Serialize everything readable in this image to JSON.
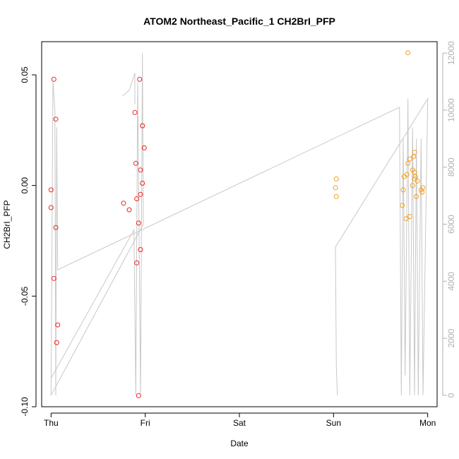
{
  "chart_data": {
    "type": "scatter",
    "title": "ATOM2 Northeast_Pacific_1 CH2BrI_PFP",
    "xlabel": "Date",
    "ylabel": "CH2BrI_PFP",
    "x_ticks": [
      "Thu",
      "Fri",
      "Sat",
      "Sun",
      "Mon"
    ],
    "y_ticks": [
      "-0.10",
      "-0.05",
      "0.00",
      "0.05"
    ],
    "y2_ticks": [
      "0",
      "2000",
      "4000",
      "6000",
      "8000",
      "10000",
      "12000"
    ],
    "xlim": [
      -0.1,
      4.1
    ],
    "ylim": [
      -0.1,
      0.065
    ],
    "y2lim": [
      -400,
      12400
    ],
    "grid": false,
    "colors": {
      "red_series": "#ee2222",
      "orange_series": "#f0a020",
      "altitude": "#c8c8c8",
      "axis": "#000000",
      "right_axis": "#b0b0b0"
    },
    "series": [
      {
        "marker": "circle-open",
        "color": "#ee2222",
        "points": [
          {
            "x": 0.0,
            "y": -0.002
          },
          {
            "x": 0.0,
            "y": -0.01
          },
          {
            "x": 0.03,
            "y": 0.048
          },
          {
            "x": 0.05,
            "y": 0.03
          },
          {
            "x": 0.05,
            "y": -0.019
          },
          {
            "x": 0.03,
            "y": -0.042
          },
          {
            "x": 0.07,
            "y": -0.063
          },
          {
            "x": 0.06,
            "y": -0.071
          },
          {
            "x": 0.77,
            "y": -0.008
          },
          {
            "x": 0.83,
            "y": -0.011
          },
          {
            "x": 0.89,
            "y": 0.033
          },
          {
            "x": 0.94,
            "y": 0.048
          },
          {
            "x": 0.9,
            "y": 0.01
          },
          {
            "x": 0.97,
            "y": 0.027
          },
          {
            "x": 0.99,
            "y": 0.017
          },
          {
            "x": 0.95,
            "y": 0.007
          },
          {
            "x": 0.97,
            "y": 0.001
          },
          {
            "x": 0.95,
            "y": -0.004
          },
          {
            "x": 0.91,
            "y": -0.006
          },
          {
            "x": 0.93,
            "y": -0.017
          },
          {
            "x": 0.95,
            "y": -0.029
          },
          {
            "x": 0.91,
            "y": -0.035
          },
          {
            "x": 0.93,
            "y": -0.095
          }
        ]
      },
      {
        "marker": "circle-open",
        "color": "#f0a020",
        "points": [
          {
            "x": 3.03,
            "y": 0.003
          },
          {
            "x": 3.02,
            "y": -0.001
          },
          {
            "x": 3.03,
            "y": -0.005
          },
          {
            "x": 3.79,
            "y": 0.06
          },
          {
            "x": 3.86,
            "y": 0.015
          },
          {
            "x": 3.85,
            "y": 0.013
          },
          {
            "x": 3.81,
            "y": 0.012
          },
          {
            "x": 3.79,
            "y": 0.01
          },
          {
            "x": 3.84,
            "y": 0.007
          },
          {
            "x": 3.86,
            "y": 0.006
          },
          {
            "x": 3.78,
            "y": 0.005
          },
          {
            "x": 3.75,
            "y": 0.004
          },
          {
            "x": 3.87,
            "y": 0.004
          },
          {
            "x": 3.86,
            "y": 0.003
          },
          {
            "x": 3.84,
            "y": 0.0
          },
          {
            "x": 3.89,
            "y": 0.002
          },
          {
            "x": 3.93,
            "y": -0.002
          },
          {
            "x": 3.74,
            "y": -0.002
          },
          {
            "x": 3.88,
            "y": -0.005
          },
          {
            "x": 3.73,
            "y": -0.009
          },
          {
            "x": 3.81,
            "y": -0.014
          },
          {
            "x": 3.77,
            "y": -0.015
          },
          {
            "x": 3.94,
            "y": -0.003
          },
          {
            "x": 3.95,
            "y": -0.001
          }
        ]
      },
      {
        "type": "line",
        "axis": "right",
        "color": "#c8c8c8",
        "points": [
          {
            "x": 0.0,
            "y": 0
          },
          {
            "x": 0.02,
            "y": 11000
          },
          {
            "x": 0.04,
            "y": 10000
          },
          {
            "x": 0.05,
            "y": 0
          },
          {
            "x": 0.06,
            "y": 9400
          },
          {
            "x": 0.07,
            "y": 4400
          },
          {
            "x": 3.7,
            "y": 10100
          },
          {
            "x": 3.72,
            "y": 0
          },
          {
            "x": 3.74,
            "y": 9000
          },
          {
            "x": 3.76,
            "y": 700
          },
          {
            "x": 3.79,
            "y": 10400
          },
          {
            "x": 3.81,
            "y": 0
          },
          {
            "x": 3.84,
            "y": 9400
          },
          {
            "x": 3.86,
            "y": 0
          },
          {
            "x": 3.88,
            "y": 9000
          },
          {
            "x": 3.9,
            "y": 0
          },
          {
            "x": 3.93,
            "y": 9000
          },
          {
            "x": 3.95,
            "y": 0
          },
          {
            "x": 4.0,
            "y": 10400
          },
          {
            "x": 3.02,
            "y": 5200
          },
          {
            "x": 3.03,
            "y": 1000
          },
          {
            "x": 3.04,
            "y": 0
          }
        ]
      },
      {
        "type": "line",
        "axis": "right",
        "color": "#c8c8c8",
        "points": [
          {
            "x": 0.0,
            "y": 600
          },
          {
            "x": 0.88,
            "y": 5800
          },
          {
            "x": 0.9,
            "y": 0
          },
          {
            "x": 0.92,
            "y": 11000
          },
          {
            "x": 0.95,
            "y": 0
          },
          {
            "x": 0.97,
            "y": 12000
          },
          {
            "x": 0.98,
            "y": 6000
          },
          {
            "x": 0.0,
            "y": 0
          }
        ]
      },
      {
        "type": "line",
        "axis": "right",
        "color": "#c8c8c8",
        "points": [
          {
            "x": 0.76,
            "y": 10500
          },
          {
            "x": 0.83,
            "y": 10700
          },
          {
            "x": 0.89,
            "y": 11300
          },
          {
            "x": 0.89,
            "y": 10200
          }
        ]
      }
    ]
  }
}
